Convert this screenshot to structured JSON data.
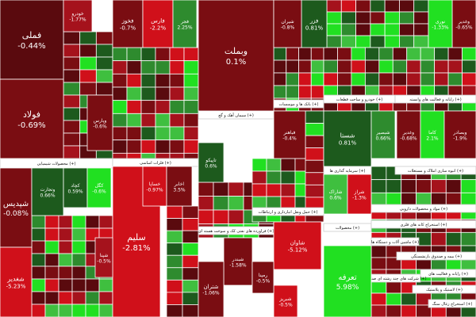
{
  "chart_data": {
    "type": "treemap",
    "colors": {
      "strong_red": "#d0101a",
      "red": "#a5121c",
      "dark_red": "#7a0d12",
      "darkest_red": "#5a0a0e",
      "dark_green": "#1d5a1d",
      "green": "#2e8b2e",
      "bright_green": "#3fbf3f",
      "neon_green": "#21e021",
      "sector_band": "#ffffff"
    },
    "sectors": [
      {
        "label": "محصولات شیمیایی (+)"
      },
      {
        "label": "سیمان آهک و گچ (+)"
      },
      {
        "label": "فلزات اساسی (+)"
      },
      {
        "label": "بانک ها و موسسات (+)"
      },
      {
        "label": "فراورده های نفتی کک و سوخت هسته ای (+)"
      },
      {
        "label": "حمل ونقل انبارداری و ارتباطات (+)"
      },
      {
        "label": "محصولات (+)"
      },
      {
        "label": "خودرو و ساخت قطعات (+)"
      },
      {
        "label": "رایانه و فعالیت های وابسته (+)"
      },
      {
        "label": "سرمایه گذاری ها (+)"
      },
      {
        "label": "انبوه سازی املاک و مستغلات (+)"
      },
      {
        "label": "مواد و محصولات دارویی (+)"
      },
      {
        "label": "استخراج کانه های فلزی (+)"
      },
      {
        "label": "بیمه و صندوق بازنشستگی (+)"
      },
      {
        "label": "رایانه و فعالیت های (+)"
      },
      {
        "label": "شرکت های چند رشته ای صنعتی (+)"
      },
      {
        "label": "لاستیک و پلاستیک (+)"
      },
      {
        "label": "استخراج زغال سنگ (+)"
      },
      {
        "label": "ماشین آلات و دستگاه ها (+)"
      }
    ],
    "stocks": [
      {
        "name": "فملی",
        "change": "-0.44%"
      },
      {
        "name": "فولاد",
        "change": "-0.69%"
      },
      {
        "name": "شپدیس",
        "change": "-0.08%"
      },
      {
        "name": "شغدیر",
        "change": "-5.23%"
      },
      {
        "name": "فخوز",
        "change": "-0.7%"
      },
      {
        "name": "فارس",
        "change": "-2.2%"
      },
      {
        "name": "فجر",
        "change": "2.25%"
      },
      {
        "name": "وبملت",
        "change": "0.1%"
      },
      {
        "name": "فزر",
        "change": "0.81%"
      },
      {
        "name": "شستا",
        "change": "0.81%"
      },
      {
        "name": "وغدیر",
        "change": "-0.65%"
      },
      {
        "name": "شبندر",
        "change": "-1.58%"
      },
      {
        "name": "شتران",
        "change": "-1.06%"
      },
      {
        "name": "شبریز",
        "change": "-0.5%"
      },
      {
        "name": "تاپیکو",
        "change": "0.6%"
      },
      {
        "name": "سلیم",
        "change": "-2.81%"
      },
      {
        "name": "شاوان",
        "change": "-5.12%"
      },
      {
        "name": "شپنا",
        "change": "-0.5%"
      },
      {
        "name": "تعرفه",
        "change": "5.98%"
      },
      {
        "name": "شبصیر",
        "change": "0.66%"
      },
      {
        "name": "وپارس",
        "change": "-0.6%"
      },
      {
        "name": "وتجارت",
        "change": "0.66%"
      },
      {
        "name": "خودرو",
        "change": "-1.77%"
      },
      {
        "name": "نوری",
        "change": "-1.33%"
      },
      {
        "name": "شیران",
        "change": "-0.8%"
      },
      {
        "name": "وغدیر",
        "change": "-0.68%"
      },
      {
        "name": "خساپا",
        "change": "-0.97%"
      },
      {
        "name": "شاراک",
        "change": "0.6%"
      },
      {
        "name": "شراز",
        "change": "-1.3%"
      },
      {
        "name": "رمپنا",
        "change": "-0.5%"
      },
      {
        "name": "کچاد",
        "change": "0.59%"
      },
      {
        "name": "کگل",
        "change": "-0.6%"
      },
      {
        "name": "اخابر",
        "change": "3.5%"
      },
      {
        "name": "فباهنر",
        "change": "-0.4%"
      },
      {
        "name": "کاما",
        "change": "2.1%"
      },
      {
        "name": "وبصادر",
        "change": "-1.9%"
      }
    ]
  }
}
